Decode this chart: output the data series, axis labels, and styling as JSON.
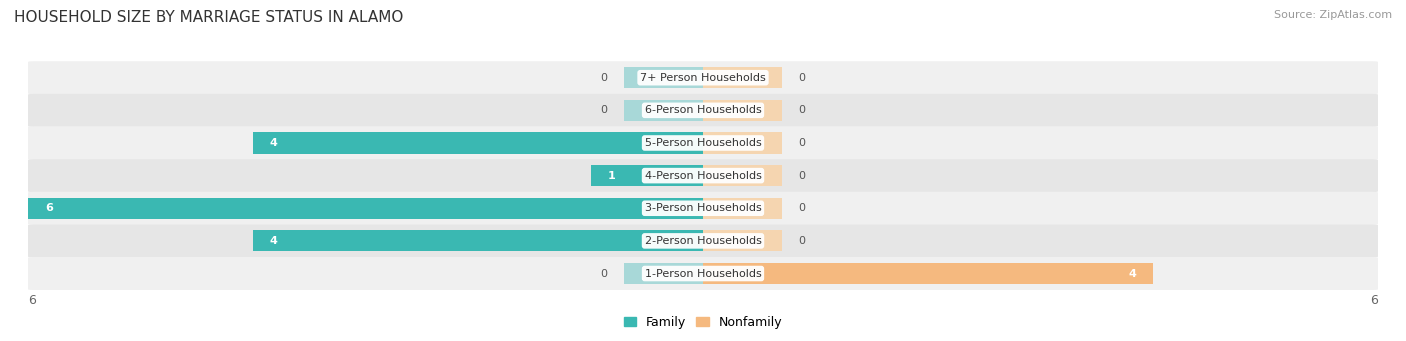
{
  "title": "HOUSEHOLD SIZE BY MARRIAGE STATUS IN ALAMO",
  "source": "Source: ZipAtlas.com",
  "categories": [
    "7+ Person Households",
    "6-Person Households",
    "5-Person Households",
    "4-Person Households",
    "3-Person Households",
    "2-Person Households",
    "1-Person Households"
  ],
  "family": [
    0,
    0,
    4,
    1,
    6,
    4,
    0
  ],
  "nonfamily": [
    0,
    0,
    0,
    0,
    0,
    0,
    4
  ],
  "family_color": "#3ab8b2",
  "nonfamily_color": "#f5b97f",
  "family_color_light": "#a8d8d8",
  "nonfamily_color_light": "#f5d5b0",
  "row_color_odd": "#f0f0f0",
  "row_color_even": "#e6e6e6",
  "xlim_left": -6,
  "xlim_right": 6,
  "title_fontsize": 11,
  "source_fontsize": 8,
  "legend_family": "Family",
  "legend_nonfamily": "Nonfamily",
  "bar_height": 0.65,
  "zero_bar_size": 0.7,
  "label_fontsize": 8,
  "value_fontsize": 8
}
